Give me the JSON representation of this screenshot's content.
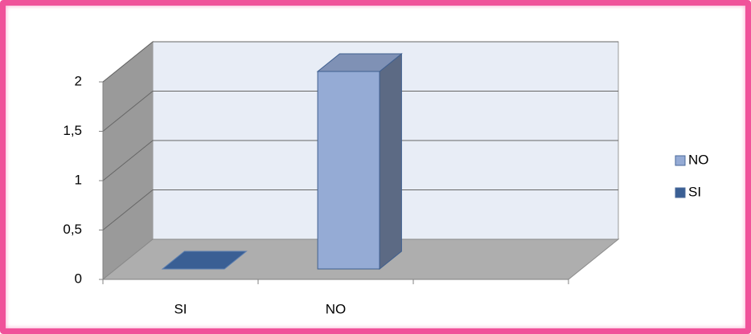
{
  "chart_data": {
    "type": "bar3d",
    "categories": [
      "SI",
      "NO",
      null
    ],
    "series": [
      {
        "name": "NO",
        "color": "#95abd5",
        "values": [
          null,
          2,
          null
        ]
      },
      {
        "name": "SI",
        "color": "#3a5f94",
        "values": [
          0,
          null,
          null
        ]
      }
    ],
    "ylim": [
      0,
      2
    ],
    "yticks": [
      0,
      {
        "value": 0.5,
        "label": "0,5"
      },
      1,
      {
        "value": 1.5,
        "label": "1,5"
      },
      2
    ],
    "grid": true,
    "legend": "right"
  }
}
